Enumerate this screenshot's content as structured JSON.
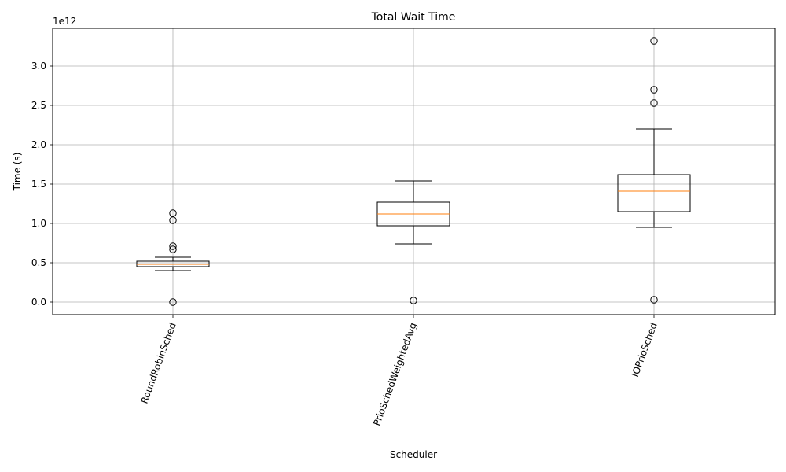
{
  "chart_data": {
    "type": "boxplot",
    "title": "Total Wait Time",
    "xlabel": "Scheduler",
    "ylabel": "Time (s)",
    "offset_text": "1e12",
    "y_scale_factor": 1000000000000.0,
    "ylim": [
      -0.16,
      3.48
    ],
    "yticks": [
      0.0,
      0.5,
      1.0,
      1.5,
      2.0,
      2.5,
      3.0
    ],
    "ytick_labels": [
      "0.0",
      "0.5",
      "1.0",
      "1.5",
      "2.0",
      "2.5",
      "3.0"
    ],
    "grid": true,
    "categories": [
      "RoundRobinSched",
      "PrioSchedWeightedAvg",
      "IOPrioSched"
    ],
    "boxes": [
      {
        "name": "RoundRobinSched",
        "whisker_low": 0.4,
        "q1": 0.45,
        "median": 0.48,
        "q3": 0.52,
        "whisker_high": 0.57,
        "outliers": [
          1.13,
          1.04,
          0.71,
          0.67,
          0.0
        ]
      },
      {
        "name": "PrioSchedWeightedAvg",
        "whisker_low": 0.74,
        "q1": 0.97,
        "median": 1.12,
        "q3": 1.27,
        "whisker_high": 1.54,
        "outliers": [
          0.02
        ]
      },
      {
        "name": "IOPrioSched",
        "whisker_low": 0.95,
        "q1": 1.15,
        "median": 1.41,
        "q3": 1.62,
        "whisker_high": 2.2,
        "outliers": [
          3.32,
          2.7,
          2.53,
          0.03
        ]
      }
    ],
    "colors": {
      "box": "#000000",
      "median": "#ff7f0e",
      "grid": "#b0b0b0",
      "outlier_face": "none"
    }
  }
}
